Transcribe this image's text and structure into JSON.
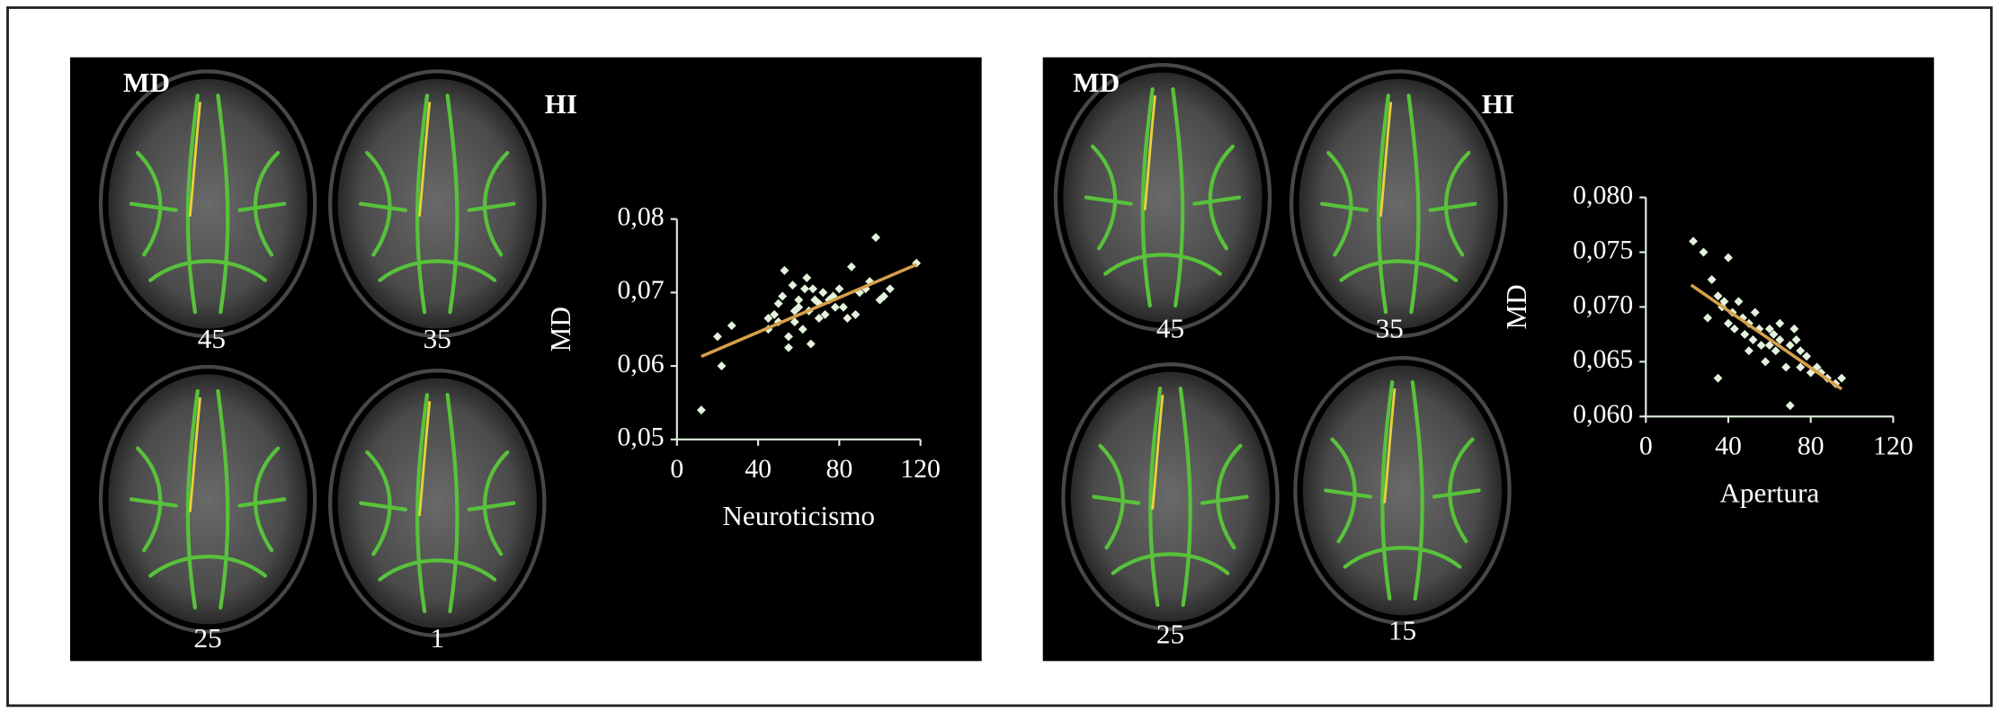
{
  "chart_data": [
    {
      "type": "scatter",
      "y_label": "MD",
      "x_label": "Neuroticismo",
      "color": "#e2f2dc",
      "xlim": [
        0,
        120
      ],
      "xticks": [
        0,
        40,
        80,
        120
      ],
      "ylim": [
        0.05,
        0.08
      ],
      "yticks": [
        {
          "value": 0.05,
          "label": "0,05"
        },
        {
          "value": 0.06,
          "label": "0,06"
        },
        {
          "value": 0.07,
          "label": "0,07"
        },
        {
          "value": 0.08,
          "label": "0,08"
        }
      ],
      "x": [
        12,
        20,
        22,
        27,
        45,
        45,
        48,
        50,
        52,
        53,
        55,
        55,
        57,
        58,
        60,
        60,
        62,
        63,
        64,
        65,
        66,
        68,
        70,
        70,
        72,
        73,
        75,
        77,
        80,
        82,
        84,
        86,
        88,
        90,
        93,
        95,
        98,
        100,
        102,
        105,
        118,
        58,
        50,
        67,
        78
      ],
      "values": [
        0.054,
        0.064,
        0.06,
        0.0655,
        0.065,
        0.0665,
        0.067,
        0.0685,
        0.0695,
        0.073,
        0.064,
        0.0625,
        0.071,
        0.066,
        0.068,
        0.069,
        0.065,
        0.0705,
        0.072,
        0.0675,
        0.063,
        0.069,
        0.0665,
        0.0685,
        0.07,
        0.067,
        0.069,
        0.0695,
        0.0705,
        0.068,
        0.0665,
        0.0735,
        0.067,
        0.07,
        0.0705,
        0.0715,
        0.0775,
        0.069,
        0.0695,
        0.0705,
        0.074,
        0.0675,
        0.066,
        0.0705,
        0.068
      ],
      "trendline": {
        "color": "#d6a04a",
        "x": [
          12,
          118
        ],
        "y": [
          0.0613,
          0.0738
        ]
      }
    },
    {
      "type": "scatter",
      "y_label": "MD",
      "x_label": "Apertura",
      "color": "#e2f2dc",
      "xlim": [
        0,
        120
      ],
      "xticks": [
        0,
        40,
        80,
        120
      ],
      "ylim": [
        0.06,
        0.08
      ],
      "yticks": [
        {
          "value": 0.06,
          "label": "0,060"
        },
        {
          "value": 0.065,
          "label": "0,065"
        },
        {
          "value": 0.07,
          "label": "0,070"
        },
        {
          "value": 0.075,
          "label": "0,075"
        },
        {
          "value": 0.08,
          "label": "0,080"
        }
      ],
      "x": [
        23,
        28,
        30,
        32,
        35,
        35,
        37,
        38,
        40,
        40,
        42,
        43,
        45,
        47,
        48,
        50,
        50,
        52,
        53,
        55,
        56,
        58,
        60,
        60,
        62,
        63,
        65,
        65,
        68,
        70,
        70,
        72,
        73,
        75,
        75,
        78,
        80,
        83,
        85,
        88,
        92,
        95
      ],
      "values": [
        0.076,
        0.075,
        0.069,
        0.0725,
        0.071,
        0.0635,
        0.07,
        0.0705,
        0.0745,
        0.0685,
        0.0695,
        0.068,
        0.0705,
        0.069,
        0.0675,
        0.0685,
        0.066,
        0.067,
        0.0695,
        0.068,
        0.0665,
        0.065,
        0.068,
        0.0665,
        0.0675,
        0.066,
        0.067,
        0.0685,
        0.0645,
        0.061,
        0.0665,
        0.068,
        0.067,
        0.066,
        0.0645,
        0.0655,
        0.064,
        0.0645,
        0.064,
        0.0635,
        0.063,
        0.0635
      ],
      "trendline": {
        "color": "#d6a04a",
        "x": [
          22,
          95
        ],
        "y": [
          0.072,
          0.0625
        ]
      }
    }
  ],
  "panels": [
    {
      "title": "MD",
      "side": "HI",
      "slices": [
        "45",
        "35",
        "25",
        "1"
      ]
    },
    {
      "title": "MD",
      "side": "HI",
      "slices": [
        "45",
        "35",
        "25",
        "15"
      ]
    }
  ]
}
